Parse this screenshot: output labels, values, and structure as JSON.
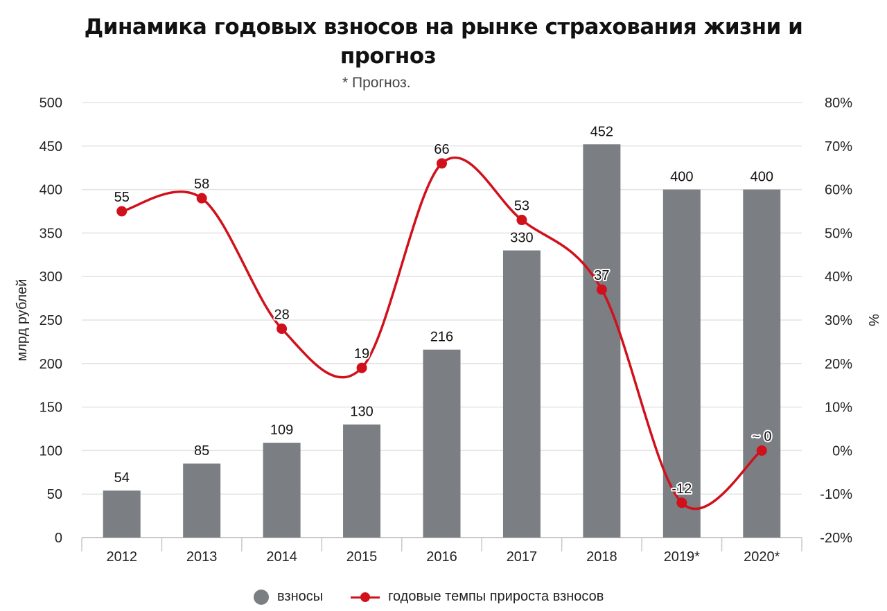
{
  "title_line1": "Динамика годовых взносов на рынке страхования жизни и",
  "title_line2": "прогноз",
  "subtitle": "* Прогноз.",
  "legend": {
    "bars": "взносы",
    "line": "годовые темпы прироста взносов"
  },
  "colors": {
    "bars": "#7b7e83",
    "line": "#d0111c",
    "grid": "#e3e3e3",
    "axis": "#c9c9c9"
  },
  "chart_data": {
    "type": "bar",
    "categories": [
      "2012",
      "2013",
      "2014",
      "2015",
      "2016",
      "2017",
      "2018",
      "2019*",
      "2020*"
    ],
    "ylabel": "млрд рублей",
    "y2label": "%",
    "ylim": [
      0,
      500
    ],
    "y2lim": [
      -20,
      80
    ],
    "yticks": [
      "0",
      "50",
      "100",
      "150",
      "200",
      "250",
      "300",
      "350",
      "400",
      "450",
      "500"
    ],
    "y2ticks": [
      "-20%",
      "-10%",
      "0%",
      "10%",
      "20%",
      "30%",
      "40%",
      "50%",
      "60%",
      "70%",
      "80%"
    ],
    "grid": true,
    "legend_position": "bottom",
    "series": [
      {
        "name": "взносы",
        "type": "bar",
        "axis": "left",
        "values": [
          54,
          85,
          109,
          130,
          216,
          330,
          452,
          400,
          400
        ],
        "labels": [
          "54",
          "85",
          "109",
          "130",
          "216",
          "330",
          "452",
          "400",
          "400"
        ]
      },
      {
        "name": "годовые темпы прироста взносов",
        "type": "line",
        "axis": "right",
        "values": [
          55,
          58,
          28,
          19,
          66,
          53,
          37,
          -12,
          0
        ],
        "labels": [
          "55",
          "58",
          "28",
          "19",
          "66",
          "53",
          "37",
          "-12",
          "~ 0"
        ]
      }
    ]
  }
}
